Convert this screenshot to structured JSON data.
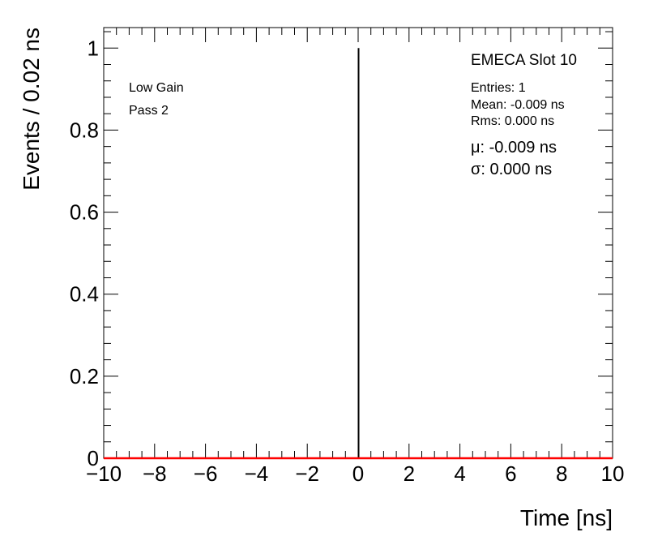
{
  "chart_data": {
    "type": "histogram",
    "xlabel": "Time [ns]",
    "ylabel": "Events / 0.02 ns",
    "xlim": [
      -10,
      10
    ],
    "ylim": [
      0,
      1.05
    ],
    "x_ticks": [
      -10,
      -8,
      -6,
      -4,
      -2,
      0,
      2,
      4,
      6,
      8,
      10
    ],
    "x_tick_labels": [
      "−10",
      "−8",
      "−6",
      "−4",
      "−2",
      "0",
      "2",
      "4",
      "6",
      "8",
      "10"
    ],
    "y_ticks": [
      0,
      0.2,
      0.4,
      0.6,
      0.8,
      1
    ],
    "y_tick_labels": [
      "0",
      "0.2",
      "0.4",
      "0.6",
      "0.8",
      "1"
    ],
    "bin_width": 0.02,
    "entries_data": [
      {
        "x": -0.009,
        "y": 1
      }
    ],
    "fit_line": {
      "color": "#ff0000",
      "y": 0
    },
    "histogram_color": "#000000",
    "grid": false,
    "annotations": {
      "left": [
        "Low Gain",
        "Pass 2"
      ],
      "stats_title": "EMECA Slot 10",
      "stats_lines": [
        "Entries: 1",
        "Mean: -0.009 ns",
        "Rms: 0.000 ns"
      ],
      "fit_lines": [
        "μ: -0.009 ns",
        "σ: 0.000 ns"
      ]
    }
  }
}
